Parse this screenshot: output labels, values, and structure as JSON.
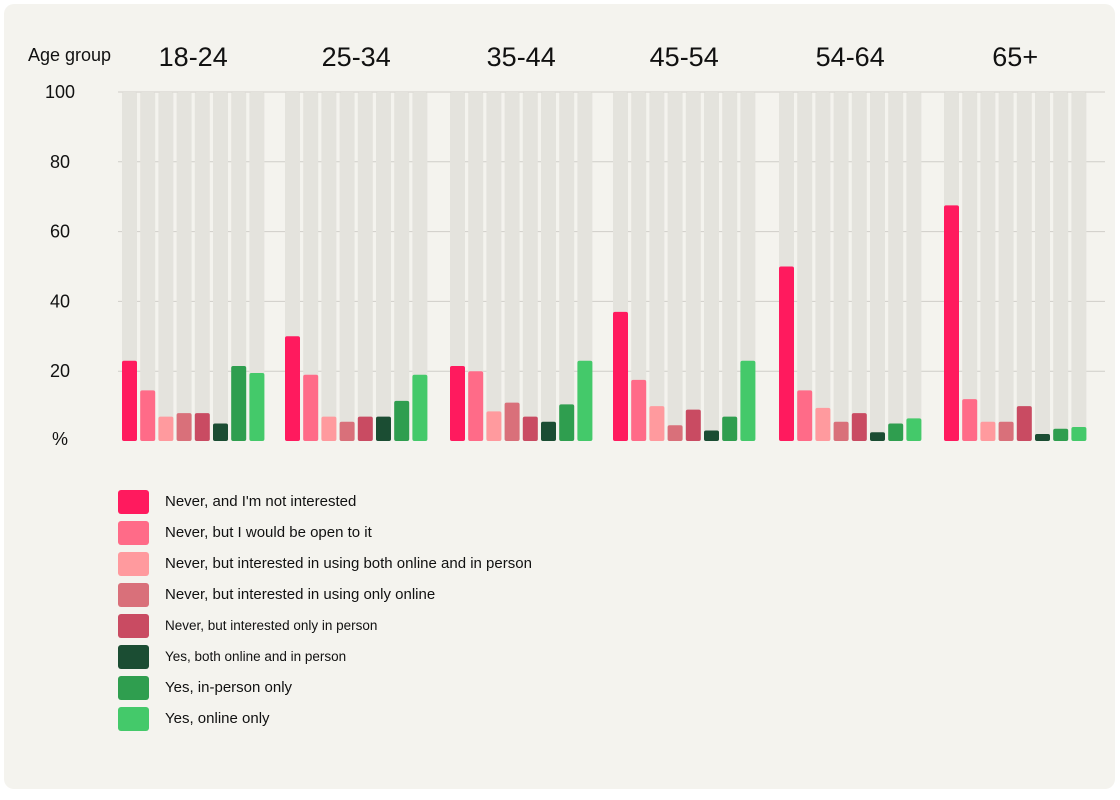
{
  "chart_data": {
    "type": "bar",
    "group_axis_label": "Age group",
    "y_unit_label": "%",
    "ylim": [
      0,
      100
    ],
    "yticks": [
      100,
      80,
      60,
      40,
      20
    ],
    "categories": [
      "18-24",
      "25-34",
      "35-44",
      "45-54",
      "54-64",
      "65+"
    ],
    "series": [
      {
        "name": "Never, and I'm not interested",
        "color": "#ff1a5e",
        "values": [
          23,
          30,
          21.5,
          37,
          50,
          67.5
        ]
      },
      {
        "name": "Never, but I would be open to it",
        "color": "#ff6b88",
        "values": [
          14.5,
          19,
          20,
          17.5,
          14.5,
          12
        ]
      },
      {
        "name": "Never, but interested in using both online and in person",
        "color": "#ff9a9e",
        "values": [
          7,
          7,
          8.5,
          10,
          9.5,
          5.5
        ]
      },
      {
        "name": "Never, but interested in using only online",
        "color": "#d9707a",
        "values": [
          8,
          5.5,
          11,
          4.5,
          5.5,
          5.5
        ]
      },
      {
        "name": "Never, but interested only in person",
        "color": "#c94b62",
        "values": [
          8,
          7,
          7,
          9,
          8,
          10
        ]
      },
      {
        "name": "Yes, both online and in person",
        "color": "#1b4d33",
        "values": [
          5,
          7,
          5.5,
          3,
          2.5,
          2
        ]
      },
      {
        "name": "Yes, in-person only",
        "color": "#2f9e4f",
        "values": [
          21.5,
          11.5,
          10.5,
          7,
          5,
          3.5
        ]
      },
      {
        "name": "Yes, online only",
        "color": "#44c96a",
        "values": [
          19.5,
          19,
          23,
          23,
          6.5,
          4
        ]
      }
    ],
    "grid": true
  }
}
